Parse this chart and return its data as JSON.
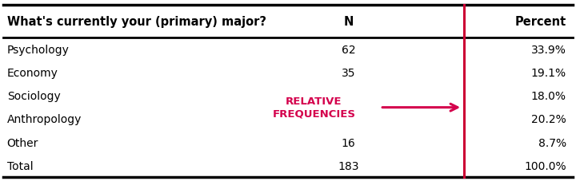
{
  "title_col1": "What's currently your (primary) major?",
  "title_col2": "N",
  "title_col3": "Percent",
  "rows": [
    [
      "Psychology",
      "62",
      "33.9%"
    ],
    [
      "Economy",
      "35",
      "19.1%"
    ],
    [
      "Sociology",
      "",
      "18.0%"
    ],
    [
      "Anthropology",
      "",
      "20.2%"
    ],
    [
      "Other",
      "16",
      "8.7%"
    ],
    [
      "Total",
      "183",
      "100.0%"
    ]
  ],
  "annotation_text": "RELATIVE\nFREQUENCIES",
  "annotation_color": "#d4004c",
  "arrow_color": "#d4004c",
  "header_color": "#000000",
  "data_color": "#000000",
  "percent_color": "#000000",
  "red_box_color": "#cc0033",
  "background": "#ffffff",
  "figsize": [
    7.2,
    2.28
  ],
  "dpi": 100
}
